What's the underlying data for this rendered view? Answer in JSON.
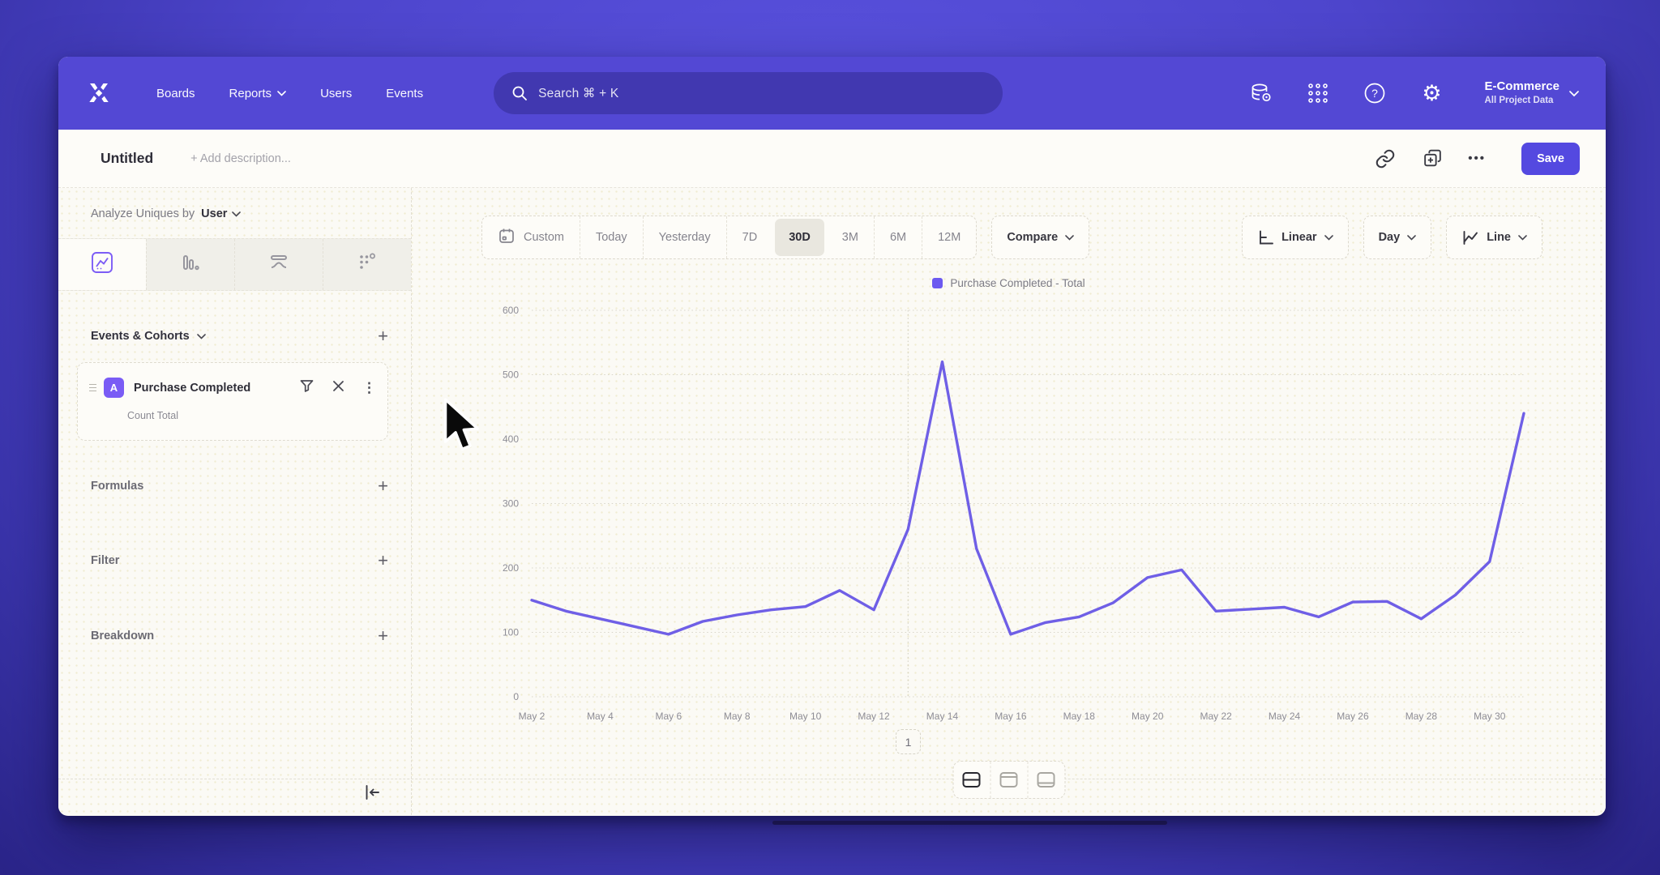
{
  "topnav": {
    "brand": "Mixpanel",
    "items": [
      {
        "label": "Boards"
      },
      {
        "label": "Reports"
      },
      {
        "label": "Users"
      },
      {
        "label": "Events"
      }
    ],
    "search": {
      "placeholder": "Search  ⌘ + K"
    },
    "project": {
      "name": "E-Commerce",
      "scope": "All Project Data"
    }
  },
  "header": {
    "title": "Untitled",
    "description_placeholder": "+ Add description...",
    "more_label": "•••",
    "save_label": "Save"
  },
  "sidebar": {
    "analyze_prefix": "Analyze Uniques by",
    "analyze_entity": "User",
    "events_section": "Events & Cohorts",
    "add_label": "+",
    "event_card": {
      "badge": "A",
      "title": "Purchase Completed",
      "subtitle": "Count Total"
    },
    "formulas_section": "Formulas",
    "filter_section": "Filter",
    "breakdown_section": "Breakdown"
  },
  "toolbar": {
    "ranges": [
      "Custom",
      "Today",
      "Yesterday",
      "7D",
      "30D",
      "3M",
      "6M",
      "12M"
    ],
    "selected_range": "30D",
    "compare_label": "Compare",
    "scale_label": "Linear",
    "interval_label": "Day",
    "chart_type_label": "Line"
  },
  "legend": {
    "series_label": "Purchase Completed - Total"
  },
  "pagination": {
    "label": "1"
  },
  "chart_data": {
    "type": "line",
    "title": "",
    "x": [
      "May 2",
      "May 3",
      "May 4",
      "May 5",
      "May 6",
      "May 7",
      "May 8",
      "May 9",
      "May 10",
      "May 11",
      "May 12",
      "May 13",
      "May 14",
      "May 15",
      "May 16",
      "May 17",
      "May 18",
      "May 19",
      "May 20",
      "May 21",
      "May 22",
      "May 23",
      "May 24",
      "May 25",
      "May 26",
      "May 27",
      "May 28",
      "May 29",
      "May 30",
      "May 31"
    ],
    "x_tick_every": 2,
    "series": [
      {
        "name": "Purchase Completed - Total",
        "color": "#6f5fe6",
        "values": [
          150,
          133,
          121,
          109,
          97,
          117,
          127,
          135,
          140,
          165,
          135,
          260,
          520,
          230,
          97,
          115,
          124,
          146,
          185,
          197,
          133,
          136,
          139,
          124,
          147,
          148,
          121,
          158,
          210,
          440
        ]
      }
    ],
    "ylim": [
      0,
      600
    ],
    "yticks": [
      0,
      100,
      200,
      300,
      400,
      500,
      600
    ],
    "grid": "horizontal-dotted",
    "legend_position": "top-center",
    "annotation": {
      "index": 11,
      "x": "May 13",
      "label": "1"
    }
  },
  "colors": {
    "topbar": "#5348d4",
    "accent": "#5449e0",
    "line": "#6f5fe6",
    "canvas": "#fbfaf5",
    "text_dark": "#2e2d38",
    "text_gray": "#8b8a93"
  }
}
